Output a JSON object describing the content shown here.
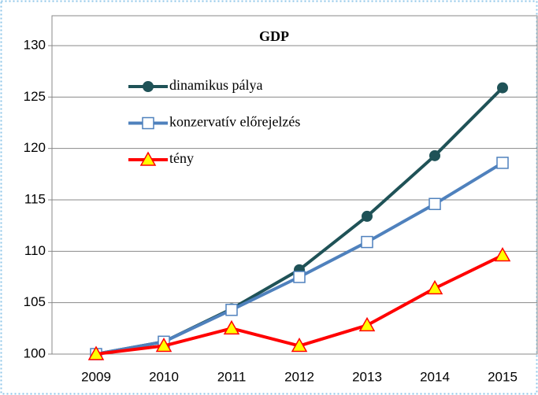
{
  "chart_data": {
    "type": "line",
    "title": "GDP",
    "categories": [
      "2009",
      "2010",
      "2011",
      "2012",
      "2013",
      "2014",
      "2015"
    ],
    "series": [
      {
        "name": "dinamikus pálya",
        "color": "#1f5257",
        "marker": "circle",
        "values": [
          100,
          101.2,
          104.4,
          108.2,
          113.4,
          119.3,
          125.9
        ]
      },
      {
        "name": "konzervatív előrejelzés",
        "color": "#4f81bd",
        "marker": "square",
        "values": [
          100,
          101.2,
          104.3,
          107.5,
          110.9,
          114.6,
          118.6
        ]
      },
      {
        "name": "tény",
        "color": "#ff0000",
        "marker": "triangle",
        "values": [
          100,
          100.8,
          102.5,
          100.8,
          102.8,
          106.4,
          109.6
        ]
      }
    ],
    "ylim": [
      100,
      130
    ],
    "yticks": [
      100,
      105,
      110,
      115,
      120,
      125,
      130
    ],
    "grid": true
  }
}
